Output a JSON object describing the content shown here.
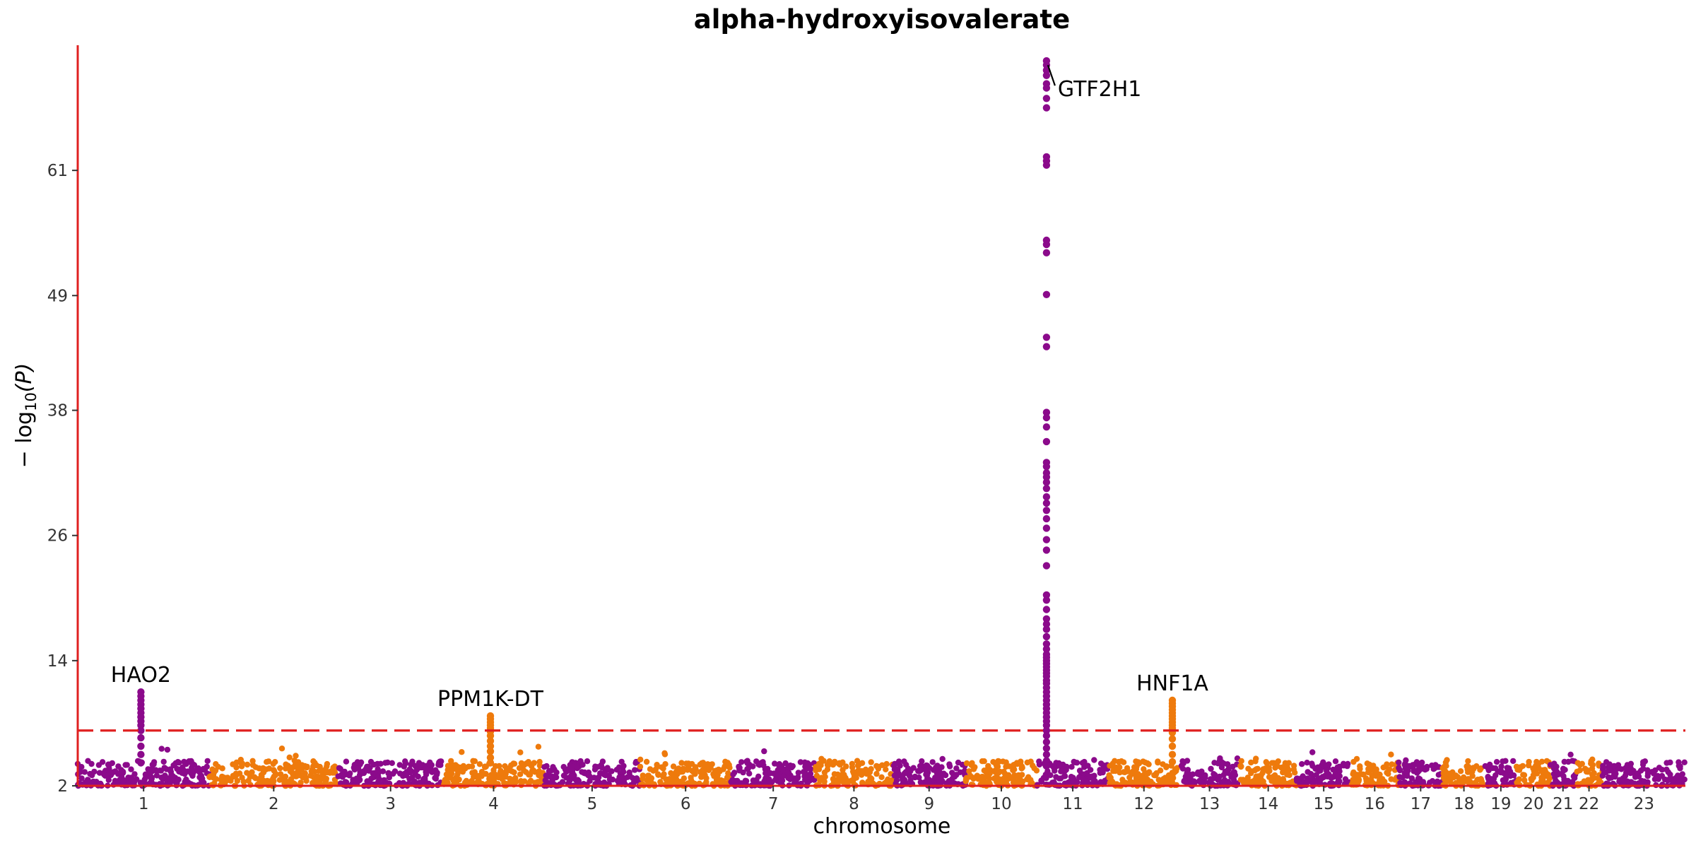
{
  "chart_data": {
    "type": "scatter",
    "subtype": "manhattan",
    "title": "alpha-hydroxyisovalerate",
    "xlabel": "chromosome",
    "ylabel": "−log10(P)",
    "ylabel_parts": {
      "prefix": "− log",
      "sub": "10",
      "suffix": "(P)"
    },
    "ylim": [
      2,
      73
    ],
    "yticks": [
      2,
      14,
      26,
      38,
      49,
      61
    ],
    "significance_threshold": 7.3,
    "colors": {
      "odd_chromosomes": "#8B0A8B",
      "even_chromosomes": "#EE7A0C",
      "axis": "#E02020",
      "threshold": "#E02020"
    },
    "chromosomes": [
      {
        "label": "1",
        "length": 248
      },
      {
        "label": "2",
        "length": 242
      },
      {
        "label": "3",
        "length": 198
      },
      {
        "label": "4",
        "length": 190
      },
      {
        "label": "5",
        "length": 181
      },
      {
        "label": "6",
        "length": 171
      },
      {
        "label": "7",
        "length": 159
      },
      {
        "label": "8",
        "length": 145
      },
      {
        "label": "9",
        "length": 138
      },
      {
        "label": "10",
        "length": 134
      },
      {
        "label": "11",
        "length": 135
      },
      {
        "label": "12",
        "length": 133
      },
      {
        "label": "13",
        "length": 114
      },
      {
        "label": "14",
        "length": 107
      },
      {
        "label": "15",
        "length": 102
      },
      {
        "label": "16",
        "length": 90
      },
      {
        "label": "17",
        "length": 83
      },
      {
        "label": "18",
        "length": 80
      },
      {
        "label": "19",
        "length": 59
      },
      {
        "label": "20",
        "length": 64
      },
      {
        "label": "21",
        "length": 47
      },
      {
        "label": "22",
        "length": 51
      },
      {
        "label": "23",
        "length": 156
      }
    ],
    "peaks": [
      {
        "gene": "HAO2",
        "chromosome": "1",
        "position": 119,
        "top": 11.0,
        "hits": [
          11.0,
          10.6,
          10.2,
          9.8,
          9.4,
          9.0,
          8.6,
          8.2,
          7.8,
          7.3,
          6.6,
          5.8,
          5.0,
          4.2
        ]
      },
      {
        "gene": "PPM1K-DT",
        "chromosome": "4",
        "position": 89,
        "top": 8.7,
        "hits": [
          8.7,
          8.4,
          8.1,
          7.8,
          7.5,
          7.2,
          6.8,
          6.3,
          5.8,
          5.3,
          4.7,
          4.2
        ]
      },
      {
        "gene": "GTF2H1",
        "chromosome": "11",
        "position": 18,
        "top": 71.5,
        "hits": [
          71.5,
          71.1,
          70.6,
          70.1,
          69.3,
          68.9,
          67.9,
          67.0,
          62.3,
          61.9,
          61.5,
          54.3,
          53.9,
          53.1,
          49.1,
          45.0,
          44.1,
          37.8,
          37.3,
          36.4,
          35.0,
          33.0,
          32.6,
          32.0,
          31.6,
          31.1,
          30.5,
          29.7,
          29.1,
          28.4,
          27.6,
          26.7,
          25.6,
          24.6,
          23.1,
          20.3,
          19.8,
          18.9,
          18.0,
          17.5,
          17.0,
          16.3,
          15.6,
          15.1,
          14.6,
          14.3,
          14.0,
          13.7,
          13.4,
          13.1,
          12.8,
          12.5,
          12.1,
          11.8,
          11.4,
          11.0,
          10.6,
          10.2,
          9.8,
          9.4,
          9.0,
          8.6,
          8.2,
          7.8,
          7.3,
          6.8,
          6.2,
          5.6,
          5.0,
          4.4,
          3.9
        ]
      },
      {
        "gene": "HNF1A",
        "chromosome": "12",
        "position": 120,
        "top": 10.2,
        "hits": [
          10.2,
          9.9,
          9.6,
          9.3,
          9.0,
          8.7,
          8.4,
          8.1,
          7.8,
          7.5,
          7.1,
          6.5,
          5.8,
          5.0,
          4.3
        ]
      }
    ]
  }
}
